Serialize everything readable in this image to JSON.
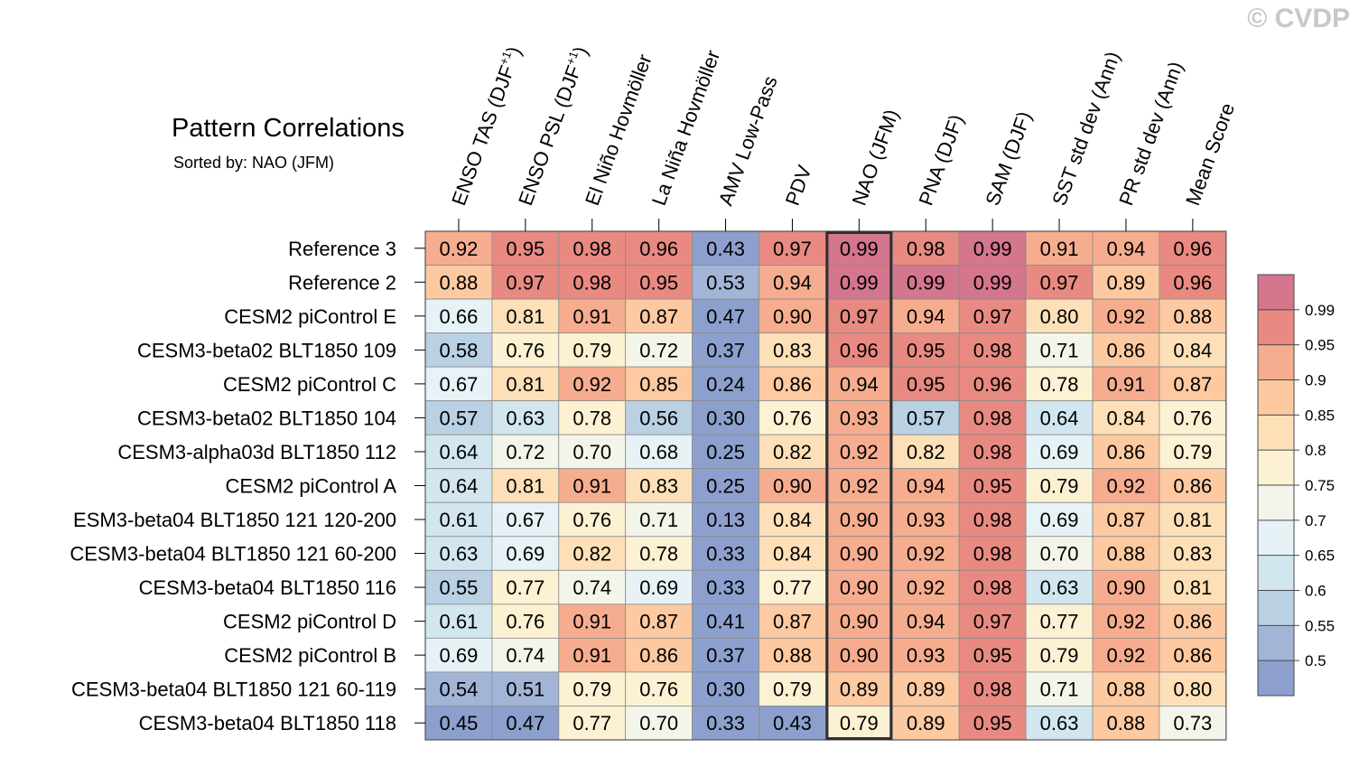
{
  "watermark": "© CVDP",
  "chart_data": {
    "type": "heatmap",
    "title": "Pattern Correlations",
    "subtitle": "Sorted by: NAO (JFM)",
    "highlight_column": "NAO (JFM)",
    "columns": [
      {
        "pre": "ENSO TAS (DJF",
        "sup": "+1",
        "post": ")"
      },
      {
        "pre": "ENSO PSL (DJF",
        "sup": "+1",
        "post": ")"
      },
      {
        "pre": "El Niño Hovmöller",
        "sup": "",
        "post": ""
      },
      {
        "pre": "La Niña Hovmöller",
        "sup": "",
        "post": ""
      },
      {
        "pre": "AMV Low-Pass",
        "sup": "",
        "post": ""
      },
      {
        "pre": "PDV",
        "sup": "",
        "post": ""
      },
      {
        "pre": "NAO (JFM)",
        "sup": "",
        "post": ""
      },
      {
        "pre": "PNA (DJF)",
        "sup": "",
        "post": ""
      },
      {
        "pre": "SAM (DJF)",
        "sup": "",
        "post": ""
      },
      {
        "pre": "SST std dev (Ann)",
        "sup": "",
        "post": ""
      },
      {
        "pre": "PR std dev (Ann)",
        "sup": "",
        "post": ""
      },
      {
        "pre": "Mean Score",
        "sup": "",
        "post": ""
      }
    ],
    "rows": [
      "Reference 3",
      "Reference 2",
      "CESM2 piControl E",
      "CESM3-beta02 BLT1850 109",
      "CESM2 piControl C",
      "CESM3-beta02 BLT1850 104",
      "CESM3-alpha03d BLT1850 112",
      "CESM2 piControl A",
      "ESM3-beta04 BLT1850 121 120-200",
      "CESM3-beta04 BLT1850 121 60-200",
      "CESM3-beta04 BLT1850 116",
      "CESM2 piControl D",
      "CESM2 piControl B",
      "CESM3-beta04 BLT1850 121 60-119",
      "CESM3-beta04 BLT1850 118"
    ],
    "values": [
      [
        "0.92",
        "0.95",
        "0.98",
        "0.96",
        "0.43",
        "0.97",
        "0.99",
        "0.98",
        "0.99",
        "0.91",
        "0.94",
        "0.96"
      ],
      [
        "0.88",
        "0.97",
        "0.98",
        "0.95",
        "0.53",
        "0.94",
        "0.99",
        "0.99",
        "0.99",
        "0.97",
        "0.89",
        "0.96"
      ],
      [
        "0.66",
        "0.81",
        "0.91",
        "0.87",
        "0.47",
        "0.90",
        "0.97",
        "0.94",
        "0.97",
        "0.80",
        "0.92",
        "0.88"
      ],
      [
        "0.58",
        "0.76",
        "0.79",
        "0.72",
        "0.37",
        "0.83",
        "0.96",
        "0.95",
        "0.98",
        "0.71",
        "0.86",
        "0.84"
      ],
      [
        "0.67",
        "0.81",
        "0.92",
        "0.85",
        "0.24",
        "0.86",
        "0.94",
        "0.95",
        "0.96",
        "0.78",
        "0.91",
        "0.87"
      ],
      [
        "0.57",
        "0.63",
        "0.78",
        "0.56",
        "0.30",
        "0.76",
        "0.93",
        "0.57",
        "0.98",
        "0.64",
        "0.84",
        "0.76"
      ],
      [
        "0.64",
        "0.72",
        "0.70",
        "0.68",
        "0.25",
        "0.82",
        "0.92",
        "0.82",
        "0.98",
        "0.69",
        "0.86",
        "0.79"
      ],
      [
        "0.64",
        "0.81",
        "0.91",
        "0.83",
        "0.25",
        "0.90",
        "0.92",
        "0.94",
        "0.95",
        "0.79",
        "0.92",
        "0.86"
      ],
      [
        "0.61",
        "0.67",
        "0.76",
        "0.71",
        "0.13",
        "0.84",
        "0.90",
        "0.93",
        "0.98",
        "0.69",
        "0.87",
        "0.81"
      ],
      [
        "0.63",
        "0.69",
        "0.82",
        "0.78",
        "0.33",
        "0.84",
        "0.90",
        "0.92",
        "0.98",
        "0.70",
        "0.88",
        "0.83"
      ],
      [
        "0.55",
        "0.77",
        "0.74",
        "0.69",
        "0.33",
        "0.77",
        "0.90",
        "0.92",
        "0.98",
        "0.63",
        "0.90",
        "0.81"
      ],
      [
        "0.61",
        "0.76",
        "0.91",
        "0.87",
        "0.41",
        "0.87",
        "0.90",
        "0.94",
        "0.97",
        "0.77",
        "0.92",
        "0.86"
      ],
      [
        "0.69",
        "0.74",
        "0.91",
        "0.86",
        "0.37",
        "0.88",
        "0.90",
        "0.93",
        "0.95",
        "0.79",
        "0.92",
        "0.86"
      ],
      [
        "0.54",
        "0.51",
        "0.79",
        "0.76",
        "0.30",
        "0.79",
        "0.89",
        "0.89",
        "0.98",
        "0.71",
        "0.88",
        "0.80"
      ],
      [
        "0.45",
        "0.47",
        "0.77",
        "0.70",
        "0.33",
        "0.43",
        "0.79",
        "0.89",
        "0.95",
        "0.63",
        "0.88",
        "0.73"
      ]
    ],
    "colorbar": {
      "thresholds": [
        0.5,
        0.55,
        0.6,
        0.65,
        0.7,
        0.75,
        0.8,
        0.85,
        0.9,
        0.95,
        0.99
      ],
      "labels": [
        "0.5",
        "0.55",
        "0.6",
        "0.65",
        "0.7",
        "0.75",
        "0.8",
        "0.85",
        "0.9",
        "0.95",
        "0.99"
      ],
      "colors": [
        "#8d9fcd",
        "#a2b5d7",
        "#bad0e3",
        "#d2e6ef",
        "#e6f2f6",
        "#f4f5ea",
        "#fdf1d3",
        "#fde0b7",
        "#fcc9a1",
        "#f6ad8f",
        "#e88a82",
        "#d4768d"
      ]
    }
  }
}
